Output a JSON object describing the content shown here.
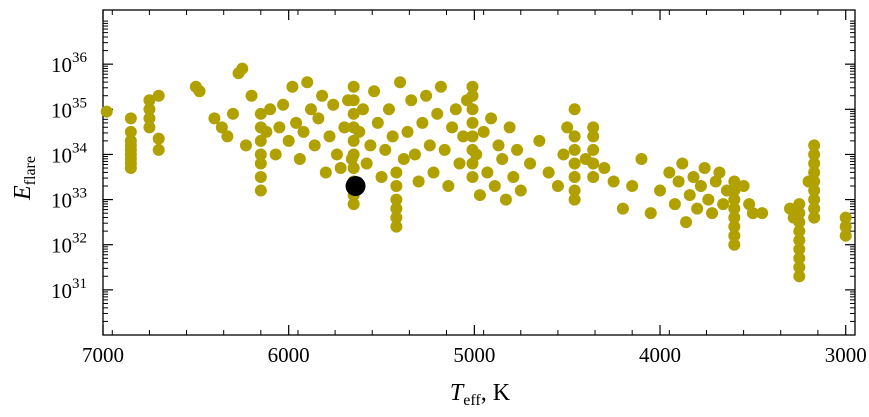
{
  "chart_data": {
    "type": "scatter",
    "xlabel": {
      "symbol": "T",
      "subscript": "eff",
      "unit": ", K"
    },
    "ylabel": {
      "symbol": "E",
      "subscript": "flare"
    },
    "x_axis": {
      "reversed": true,
      "range": [
        7000,
        2950
      ],
      "major_ticks": [
        7000,
        6000,
        5000,
        4000,
        3000
      ],
      "minor_step": 200
    },
    "y_axis": {
      "scale": "log",
      "range_exp": [
        30,
        37.2
      ],
      "major_tick_exps": [
        31,
        32,
        33,
        34,
        35,
        36
      ]
    },
    "grid": false,
    "colors": {
      "points": "#b0a000",
      "highlight": "#000000"
    },
    "series": [
      {
        "marker": "filled-circle",
        "columns": [
          {
            "x": 6980,
            "y_exps": [
              34.95
            ]
          },
          {
            "x": 6850,
            "y_exps": [
              33.7,
              33.8,
              33.9,
              34.0,
              34.1,
              34.2,
              34.3,
              34.5,
              34.8
            ]
          },
          {
            "x": 6750,
            "y_exps": [
              34.6,
              34.8,
              35.0,
              35.2
            ]
          },
          {
            "x": 6700,
            "y_exps": [
              34.1,
              34.35,
              35.3
            ]
          },
          {
            "x": 6150,
            "y_exps": [
              33.2,
              33.5,
              33.8,
              34.0,
              34.3,
              34.6,
              34.9
            ]
          },
          {
            "x": 5650,
            "y_exps": [
              32.9,
              33.1,
              33.4,
              33.7,
              34.0,
              34.3,
              34.6,
              34.9,
              35.2,
              35.5
            ]
          },
          {
            "x": 5420,
            "y_exps": [
              32.4,
              32.6,
              32.8,
              33.0,
              33.3,
              33.6
            ]
          },
          {
            "x": 5010,
            "y_exps": [
              33.5,
              33.8,
              34.1,
              34.4,
              34.7,
              35.0,
              35.3,
              35.5
            ]
          },
          {
            "x": 4460,
            "y_exps": [
              33.0,
              33.2,
              33.5,
              33.8,
              34.1,
              34.4,
              35.0
            ]
          },
          {
            "x": 4360,
            "y_exps": [
              33.5,
              33.8,
              34.1,
              34.4,
              34.6
            ]
          },
          {
            "x": 3600,
            "y_exps": [
              32.0,
              32.2,
              32.4,
              32.6,
              32.8,
              33.0,
              33.2,
              33.4
            ]
          },
          {
            "x": 3250,
            "y_exps": [
              31.3,
              31.5,
              31.7,
              31.9,
              32.1,
              32.3,
              32.5,
              32.7,
              32.9
            ]
          },
          {
            "x": 3170,
            "y_exps": [
              32.6,
              32.8,
              33.0,
              33.2,
              33.4,
              33.6,
              33.8,
              34.0,
              34.2
            ]
          },
          {
            "x": 3000,
            "y_exps": [
              32.2,
              32.4,
              32.6
            ]
          }
        ],
        "scatter": [
          [
            6500,
            35.5
          ],
          [
            6480,
            35.4
          ],
          [
            6400,
            34.8
          ],
          [
            6360,
            34.6
          ],
          [
            6330,
            34.4
          ],
          [
            6300,
            34.9
          ],
          [
            6270,
            35.8
          ],
          [
            6250,
            35.9
          ],
          [
            6230,
            34.2
          ],
          [
            6200,
            35.3
          ],
          [
            6120,
            34.5
          ],
          [
            6100,
            35.0
          ],
          [
            6070,
            34.0
          ],
          [
            6050,
            34.6
          ],
          [
            6030,
            35.1
          ],
          [
            6000,
            34.3
          ],
          [
            5980,
            35.5
          ],
          [
            5960,
            34.7
          ],
          [
            5940,
            33.9
          ],
          [
            5920,
            34.5
          ],
          [
            5900,
            35.6
          ],
          [
            5880,
            35.0
          ],
          [
            5860,
            34.2
          ],
          [
            5840,
            34.8
          ],
          [
            5820,
            35.3
          ],
          [
            5800,
            33.6
          ],
          [
            5780,
            34.4
          ],
          [
            5760,
            35.1
          ],
          [
            5740,
            34.0
          ],
          [
            5720,
            33.7
          ],
          [
            5700,
            34.6
          ],
          [
            5680,
            35.2
          ],
          [
            5660,
            33.9
          ],
          [
            5620,
            34.5
          ],
          [
            5600,
            35.0
          ],
          [
            5580,
            33.8
          ],
          [
            5560,
            34.2
          ],
          [
            5540,
            35.4
          ],
          [
            5520,
            34.7
          ],
          [
            5500,
            33.5
          ],
          [
            5480,
            34.1
          ],
          [
            5460,
            35.0
          ],
          [
            5440,
            34.4
          ],
          [
            5400,
            35.6
          ],
          [
            5380,
            33.9
          ],
          [
            5360,
            34.5
          ],
          [
            5340,
            35.2
          ],
          [
            5320,
            34.0
          ],
          [
            5300,
            33.4
          ],
          [
            5280,
            34.7
          ],
          [
            5260,
            35.3
          ],
          [
            5240,
            34.2
          ],
          [
            5220,
            33.6
          ],
          [
            5200,
            34.9
          ],
          [
            5180,
            35.5
          ],
          [
            5160,
            34.1
          ],
          [
            5140,
            33.3
          ],
          [
            5120,
            34.6
          ],
          [
            5100,
            35.0
          ],
          [
            5080,
            33.8
          ],
          [
            5060,
            34.4
          ],
          [
            5040,
            35.2
          ],
          [
            4990,
            34.0
          ],
          [
            4970,
            33.1
          ],
          [
            4950,
            34.5
          ],
          [
            4930,
            33.6
          ],
          [
            4910,
            34.8
          ],
          [
            4890,
            33.3
          ],
          [
            4870,
            34.2
          ],
          [
            4850,
            33.9
          ],
          [
            4830,
            33.0
          ],
          [
            4810,
            34.6
          ],
          [
            4790,
            33.5
          ],
          [
            4770,
            34.1
          ],
          [
            4750,
            33.2
          ],
          [
            4700,
            33.8
          ],
          [
            4650,
            34.3
          ],
          [
            4600,
            33.6
          ],
          [
            4550,
            33.3
          ],
          [
            4520,
            34.0
          ],
          [
            4500,
            34.6
          ],
          [
            4400,
            33.9
          ],
          [
            4300,
            33.7
          ],
          [
            4250,
            33.4
          ],
          [
            4200,
            32.8
          ],
          [
            4150,
            33.3
          ],
          [
            4100,
            33.9
          ],
          [
            4050,
            32.7
          ],
          [
            4000,
            33.2
          ],
          [
            3950,
            33.6
          ],
          [
            3920,
            32.9
          ],
          [
            3900,
            33.4
          ],
          [
            3880,
            33.8
          ],
          [
            3860,
            32.5
          ],
          [
            3840,
            33.1
          ],
          [
            3820,
            33.5
          ],
          [
            3800,
            32.8
          ],
          [
            3780,
            33.3
          ],
          [
            3760,
            33.7
          ],
          [
            3740,
            33.0
          ],
          [
            3720,
            32.7
          ],
          [
            3700,
            33.4
          ],
          [
            3680,
            33.6
          ],
          [
            3660,
            32.9
          ],
          [
            3640,
            33.2
          ],
          [
            3550,
            33.3
          ],
          [
            3520,
            32.9
          ],
          [
            3500,
            32.7
          ],
          [
            3450,
            32.7
          ],
          [
            3300,
            32.8
          ],
          [
            3280,
            32.6
          ],
          [
            3200,
            33.4
          ]
        ]
      },
      {
        "marker": "filled-circle-large",
        "color_key": "highlight",
        "points": [
          [
            5640,
            33.3
          ]
        ]
      }
    ]
  }
}
